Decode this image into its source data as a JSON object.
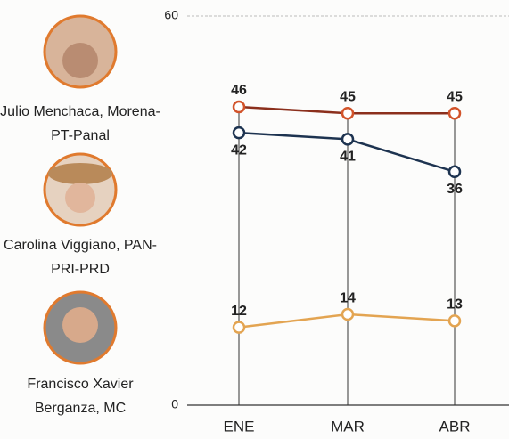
{
  "chart_data": {
    "type": "line",
    "categories": [
      "ENE",
      "MAR",
      "ABR"
    ],
    "series": [
      {
        "name": "Julio Menchaca, Morena-PT-Panal",
        "color": "#8b2f1c",
        "values": [
          46,
          45,
          45
        ]
      },
      {
        "name": "Carolina Viggiano, PAN-PRI-PRD",
        "color": "#1d3350",
        "values": [
          42,
          41,
          36
        ]
      },
      {
        "name": "Francisco Xavier Berganza, MC",
        "color": "#e3a451",
        "values": [
          12,
          14,
          13
        ]
      }
    ],
    "ylim": [
      0,
      60
    ],
    "yticks": [
      0,
      60
    ],
    "grid": true
  }
}
